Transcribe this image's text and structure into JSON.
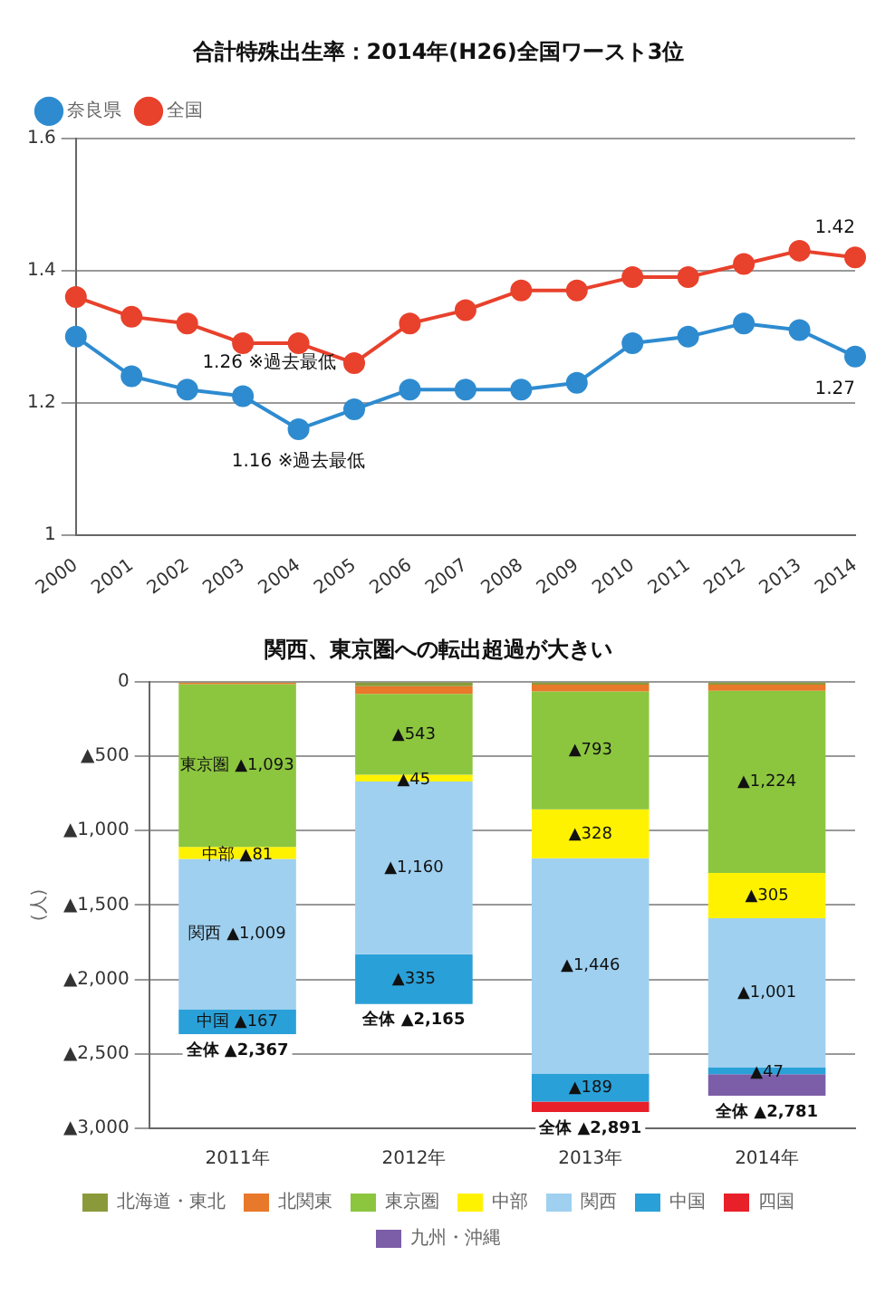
{
  "chart_data": [
    {
      "type": "line",
      "title": "合計特殊出生率：2014年(H26)全国ワースト3位",
      "categories": [
        "2000",
        "2001",
        "2002",
        "2003",
        "2004",
        "2005",
        "2006",
        "2007",
        "2008",
        "2009",
        "2010",
        "2011",
        "2012",
        "2013",
        "2014"
      ],
      "series": [
        {
          "name": "奈良県",
          "color": "#2e8bd0",
          "values": [
            1.3,
            1.24,
            1.22,
            1.21,
            1.16,
            1.19,
            1.22,
            1.22,
            1.22,
            1.23,
            1.29,
            1.3,
            1.32,
            1.31,
            1.27
          ]
        },
        {
          "name": "全国",
          "color": "#e8412c",
          "values": [
            1.36,
            1.33,
            1.32,
            1.29,
            1.29,
            1.26,
            1.32,
            1.34,
            1.37,
            1.37,
            1.39,
            1.39,
            1.41,
            1.43,
            1.42
          ]
        }
      ],
      "ylim": [
        1.0,
        1.6
      ],
      "yticks": [
        1,
        1.2,
        1.4,
        1.6
      ],
      "grid": "y",
      "legend": "top left",
      "marker": "circle",
      "annotations": [
        {
          "text": "1.42",
          "x": "2014",
          "y": 1.42
        },
        {
          "text": "1.27",
          "x": "2014",
          "y": 1.27
        },
        {
          "text": "1.26 ※過去最低",
          "x": "2005",
          "y": 1.26
        },
        {
          "text": "1.16 ※過去最低",
          "x": "2004",
          "y": 1.16
        }
      ]
    },
    {
      "type": "bar",
      "title": "関西、東京圏への転出超過が大きい",
      "ylabel": "(人)",
      "stacked": true,
      "categories": [
        "2011年",
        "2012年",
        "2013年",
        "2014年"
      ],
      "series": [
        {
          "name": "北海道・東北",
          "color": "#8a9a3a",
          "values": [
            7,
            30,
            20,
            20
          ]
        },
        {
          "name": "北関東",
          "color": "#e8782a",
          "values": [
            10,
            52,
            45,
            40
          ]
        },
        {
          "name": "東京圏",
          "color": "#8cc63f",
          "values": [
            1093,
            543,
            793,
            1224
          ],
          "value_labels": [
            "東京圏 ▲1,093",
            "▲543",
            "▲793",
            "▲1,224"
          ]
        },
        {
          "name": "中部",
          "color": "#fff200",
          "values": [
            81,
            45,
            328,
            305
          ],
          "value_labels": [
            "中部 ▲81",
            "▲45",
            "▲328",
            "▲305"
          ]
        },
        {
          "name": "関西",
          "color": "#9fd0f0",
          "values": [
            1009,
            1160,
            1446,
            1001
          ],
          "value_labels": [
            "関西 ▲1,009",
            "▲1,160",
            "▲1,446",
            "▲1,001"
          ]
        },
        {
          "name": "中国",
          "color": "#2aa0d8",
          "values": [
            167,
            335,
            189,
            47
          ],
          "value_labels": [
            "中国 ▲167",
            "▲335",
            "▲189",
            "▲47"
          ]
        },
        {
          "name": "四国",
          "color": "#e8202a",
          "values": [
            null,
            null,
            70,
            null
          ]
        },
        {
          "name": "九州・沖縄",
          "color": "#7b5ea7",
          "values": [
            null,
            null,
            null,
            144
          ]
        }
      ],
      "totals": [
        "全体 ▲2,367",
        "全体 ▲2,165",
        "全体 ▲2,891",
        "全体 ▲2,781"
      ],
      "ylim": [
        3000,
        0
      ],
      "yticks": [
        {
          "value": 3000,
          "label": "▲3,000"
        },
        {
          "value": 2500,
          "label": "▲2,500"
        },
        {
          "value": 2000,
          "label": "▲2,000"
        },
        {
          "value": 1500,
          "label": "▲1,500"
        },
        {
          "value": 1000,
          "label": "▲1,000"
        },
        {
          "value": 500,
          "label": "▲500"
        },
        0
      ],
      "grid": "y",
      "legend": "bottom"
    }
  ]
}
